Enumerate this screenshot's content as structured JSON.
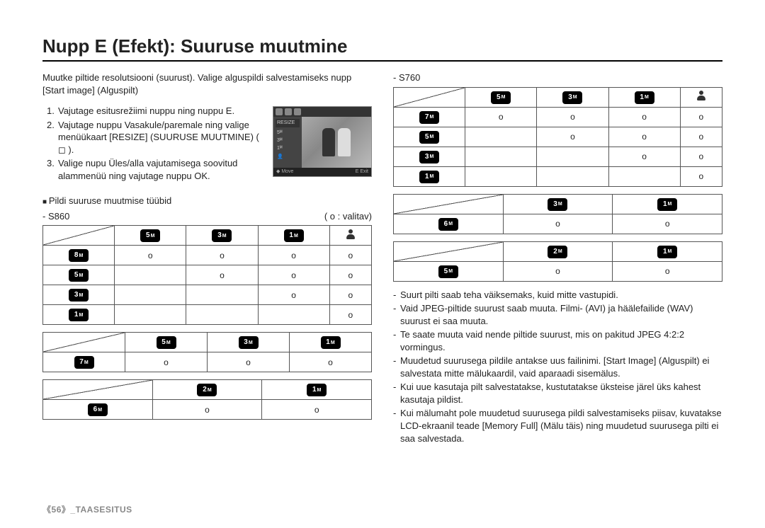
{
  "page_title": "Nupp E (Efekt): Suuruse muutmine",
  "intro": "Muutke piltide resolutsiooni (suurust). Valige alguspildi salvestamiseks nupp [Start image] (Alguspilt)",
  "steps": [
    "Vajutage esitusrežiimi nuppu ning nuppu E.",
    "Vajutage nuppu Vasakule/paremale ning valige menüükaart [RESIZE] (SUURUSE MUUTMINE) ( ◻ ).",
    "Valige nupu Üles/alla vajutamisega soovitud alammenüü ning vajutage nuppu OK."
  ],
  "screenshot": {
    "side_label": "RESIZE",
    "side_rows": [
      "5ᴹ",
      "3ᴹ",
      "1ᴹ",
      "👤"
    ],
    "bottom_left": "◆ Move",
    "bottom_right": "E  Exit"
  },
  "bullet_label": "Pildi suuruse muutmise tüübid",
  "legend_model_left": "- S860",
  "legend_valitav": "( o : valitav)",
  "legend_model_right": "- S760",
  "badges": {
    "5M": "5",
    "3M": "3",
    "1M": "1",
    "8M": "8",
    "7M": "7",
    "6M": "6",
    "2M": "2",
    "5Md": "5",
    "3Md": "3",
    "1Md": "1"
  },
  "table_s860_a": {
    "cols": [
      "5M",
      "3M",
      "1M",
      "person"
    ],
    "rows": [
      {
        "hdr": "8M",
        "cells": [
          "o",
          "o",
          "o",
          "o"
        ]
      },
      {
        "hdr": "5M",
        "cells": [
          "",
          "o",
          "o",
          "o"
        ]
      },
      {
        "hdr": "3M",
        "cells": [
          "",
          "",
          "o",
          "o"
        ]
      },
      {
        "hdr": "1M",
        "cells": [
          "",
          "",
          "",
          "o"
        ]
      }
    ]
  },
  "table_s860_b": {
    "cols": [
      "5Md",
      "3Md",
      "1Md"
    ],
    "rows": [
      {
        "hdr": "7M",
        "cells": [
          "o",
          "o",
          "o"
        ]
      }
    ]
  },
  "table_s860_c": {
    "cols": [
      "2Md",
      "1Md"
    ],
    "rows": [
      {
        "hdr": "6M",
        "cells": [
          "o",
          "o"
        ]
      }
    ]
  },
  "table_s760_a": {
    "cols": [
      "5M",
      "3M",
      "1M",
      "person"
    ],
    "rows": [
      {
        "hdr": "7M",
        "cells": [
          "o",
          "o",
          "o",
          "o"
        ]
      },
      {
        "hdr": "5M",
        "cells": [
          "",
          "o",
          "o",
          "o"
        ]
      },
      {
        "hdr": "3M",
        "cells": [
          "",
          "",
          "o",
          "o"
        ]
      },
      {
        "hdr": "1M",
        "cells": [
          "",
          "",
          "",
          "o"
        ]
      }
    ]
  },
  "table_s760_b": {
    "cols": [
      "3Md",
      "1Md"
    ],
    "rows": [
      {
        "hdr": "6M",
        "cells": [
          "o",
          "o"
        ]
      }
    ]
  },
  "table_s760_c": {
    "cols": [
      "2Md",
      "1Md"
    ],
    "rows": [
      {
        "hdr": "5M",
        "cells": [
          "o",
          "o"
        ]
      }
    ]
  },
  "notes": [
    "Suurt pilti saab teha väiksemaks, kuid mitte vastupidi.",
    "Vaid JPEG-piltide suurust saab muuta. Filmi- (AVI) ja häälefailide (WAV) suurust ei saa muuta.",
    "Te saate muuta vaid nende piltide suurust, mis on pakitud JPEG 4:2:2 vormingus.",
    "Muudetud suurusega pildile antakse uus failinimi. [Start Image] (Alguspilt) ei salvestata mitte mälukaardil, vaid aparaadi sisemälus.",
    "Kui uue kasutaja pilt salvestatakse, kustutatakse üksteise järel üks kahest kasutaja pildist.",
    "Kui mälumaht pole muudetud suurusega pildi salvestamiseks piisav, kuvatakse LCD-ekraanil teade [Memory Full] (Mälu täis) ning muudetud suurusega pilti ei saa salvestada."
  ],
  "footer_page": "56",
  "footer_section": "_TAASESITUS"
}
